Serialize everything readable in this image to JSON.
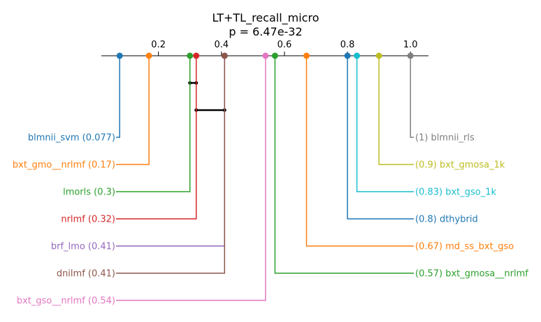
{
  "chart_data": {
    "type": "critical-difference-diagram",
    "title": "LT+TL_recall_micro",
    "subtitle": "p = 6.47e-32",
    "xlim": [
      0,
      1.05
    ],
    "ticks": [
      {
        "value": 0.2,
        "label": "0.2"
      },
      {
        "value": 0.4,
        "label": "0.4"
      },
      {
        "value": 0.6,
        "label": "0.6"
      },
      {
        "value": 0.8,
        "label": "0.8"
      },
      {
        "value": 1.0,
        "label": "1.0"
      }
    ],
    "methods": [
      {
        "name": "blmnii_svm",
        "value": 0.077,
        "label": "blmnii_svm (0.077)",
        "side": "left",
        "color": "#1f77b4"
      },
      {
        "name": "bxt_gmo__nrlmf",
        "value": 0.17,
        "label": "bxt_gmo__nrlmf (0.17)",
        "side": "left",
        "color": "#ff7f0e"
      },
      {
        "name": "lmorls",
        "value": 0.3,
        "label": "lmorls (0.3)",
        "side": "left",
        "color": "#2ca02c"
      },
      {
        "name": "nrlmf",
        "value": 0.32,
        "label": "nrlmf (0.32)",
        "side": "left",
        "color": "#d62728"
      },
      {
        "name": "brf_lmo",
        "value": 0.41,
        "label": "brf_lmo (0.41)",
        "side": "left",
        "color": "#9467bd"
      },
      {
        "name": "dnilmf",
        "value": 0.41,
        "label": "dnilmf (0.41)",
        "side": "left",
        "color": "#8c564b"
      },
      {
        "name": "bxt_gso__nrlmf",
        "value": 0.54,
        "label": "bxt_gso__nrlmf (0.54)",
        "side": "left",
        "color": "#e377c2"
      },
      {
        "name": "blmnii_rls",
        "value": 1.0,
        "label": "(1) blmnii_rls",
        "side": "right",
        "color": "#7f7f7f"
      },
      {
        "name": "bxt_gmosa_1k",
        "value": 0.9,
        "label": "(0.9) bxt_gmosa_1k",
        "side": "right",
        "color": "#bcbd22"
      },
      {
        "name": "bxt_gso_1k",
        "value": 0.83,
        "label": "(0.83) bxt_gso_1k",
        "side": "right",
        "color": "#17becf"
      },
      {
        "name": "dthybrid",
        "value": 0.8,
        "label": "(0.8) dthybrid",
        "side": "right",
        "color": "#1f77b4"
      },
      {
        "name": "md_ss_bxt_gso",
        "value": 0.67,
        "label": "(0.67) md_ss_bxt_gso",
        "side": "right",
        "color": "#ff7f0e"
      },
      {
        "name": "bxt_gmosa__nrlmf",
        "value": 0.57,
        "label": "(0.57) bxt_gmosa__nrlmf",
        "side": "right",
        "color": "#2ca02c"
      }
    ],
    "cliques": [
      {
        "from": 0.3,
        "to": 0.32
      },
      {
        "from": 0.32,
        "to": 0.41
      }
    ],
    "grid": false,
    "legend": "none"
  }
}
